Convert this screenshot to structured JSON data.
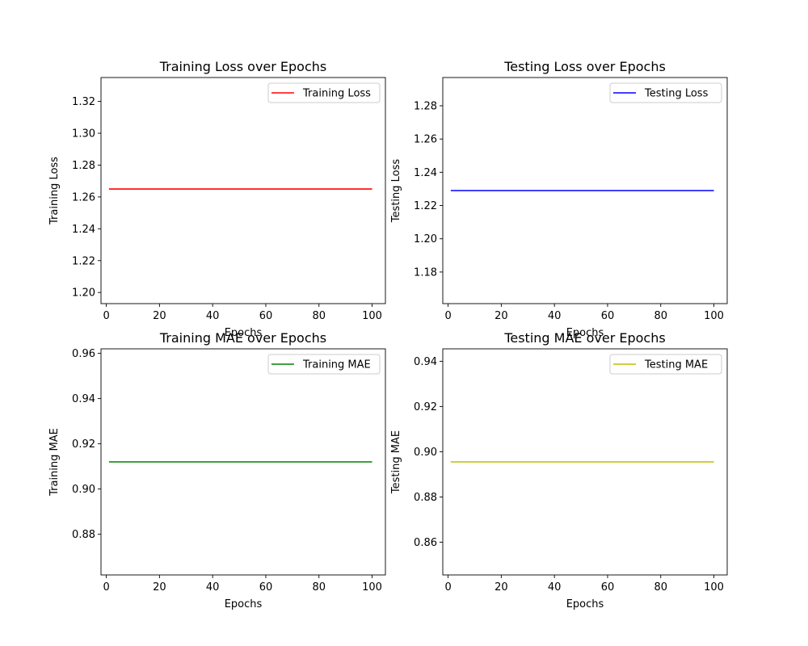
{
  "chart_data": [
    {
      "type": "line",
      "title": "Training Loss over Epochs",
      "xlabel": "Epochs",
      "ylabel": "Training Loss",
      "xlim": [
        -2,
        105
      ],
      "ylim": [
        1.193,
        1.335
      ],
      "xticks": [
        0,
        20,
        40,
        60,
        80,
        100
      ],
      "yticks": [
        1.2,
        1.22,
        1.24,
        1.26,
        1.28,
        1.3,
        1.32
      ],
      "ytick_decimals": 2,
      "grid": false,
      "legend": "top-right",
      "series": [
        {
          "name": "Training Loss",
          "color": "#ff0000",
          "x": [
            1,
            100
          ],
          "y": [
            1.265,
            1.265
          ]
        }
      ]
    },
    {
      "type": "line",
      "title": "Testing Loss over Epochs",
      "xlabel": "Epochs",
      "ylabel": "Testing Loss",
      "xlim": [
        -2,
        105
      ],
      "ylim": [
        1.161,
        1.297
      ],
      "xticks": [
        0,
        20,
        40,
        60,
        80,
        100
      ],
      "yticks": [
        1.18,
        1.2,
        1.22,
        1.24,
        1.26,
        1.28
      ],
      "ytick_decimals": 2,
      "grid": false,
      "legend": "top-right",
      "series": [
        {
          "name": "Testing Loss",
          "color": "#0000ff",
          "x": [
            1,
            100
          ],
          "y": [
            1.229,
            1.229
          ]
        }
      ]
    },
    {
      "type": "line",
      "title": "Training MAE over Epochs",
      "xlabel": "Epochs",
      "ylabel": "Training MAE",
      "xlim": [
        -2,
        105
      ],
      "ylim": [
        0.862,
        0.962
      ],
      "xticks": [
        0,
        20,
        40,
        60,
        80,
        100
      ],
      "yticks": [
        0.88,
        0.9,
        0.92,
        0.94,
        0.96
      ],
      "ytick_decimals": 2,
      "grid": false,
      "legend": "top-right",
      "series": [
        {
          "name": "Training MAE",
          "color": "#008000",
          "x": [
            1,
            100
          ],
          "y": [
            0.912,
            0.912
          ]
        }
      ]
    },
    {
      "type": "line",
      "title": "Testing MAE over Epochs",
      "xlabel": "Epochs",
      "ylabel": "Testing MAE",
      "xlim": [
        -2,
        105
      ],
      "ylim": [
        0.8455,
        0.9455
      ],
      "xticks": [
        0,
        20,
        40,
        60,
        80,
        100
      ],
      "yticks": [
        0.86,
        0.88,
        0.9,
        0.92,
        0.94
      ],
      "ytick_decimals": 2,
      "grid": false,
      "legend": "top-right",
      "series": [
        {
          "name": "Testing MAE",
          "color": "#bfbf00",
          "x": [
            1,
            100
          ],
          "y": [
            0.8955,
            0.8955
          ]
        }
      ]
    }
  ]
}
